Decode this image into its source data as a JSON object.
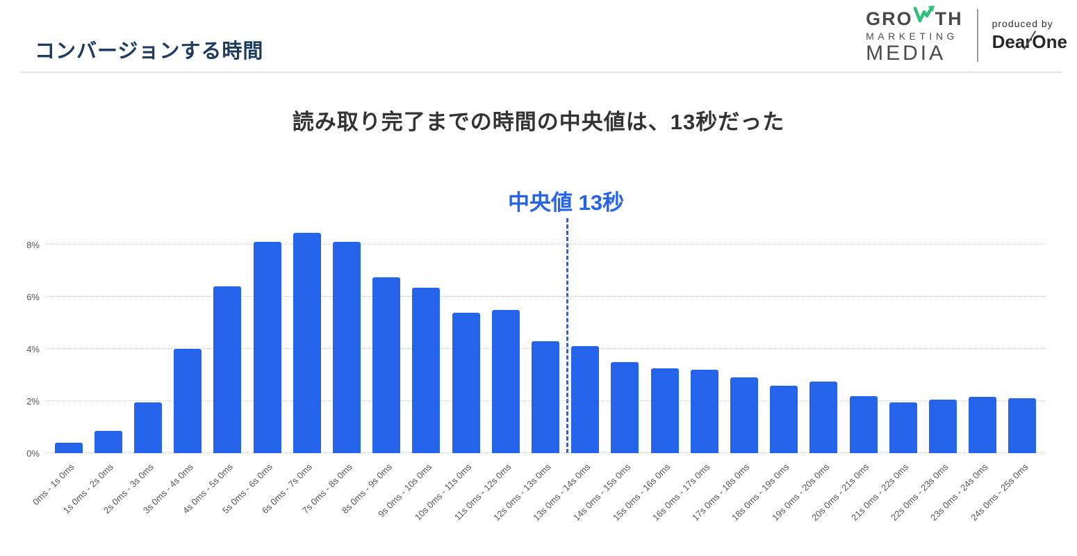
{
  "header": {
    "title": "コンバージョンする時間"
  },
  "logo": {
    "growth_pre": "GRO",
    "growth_post": "TH",
    "marketing": "MARKETING",
    "media": "MEDIA",
    "produced_by": "produced by",
    "brand": "DearOne"
  },
  "headline": "読み取り完了までの時間の中央値は、13秒だった",
  "colors": {
    "bar_blue": "#2563eb",
    "median_blue": "#2563eb",
    "title_navy": "#1d3b5f",
    "headline_dark": "#333333",
    "axis_gray": "#555555",
    "gridline_gray": "#c9d2dc",
    "logo_gray": "#4a4a4a",
    "logo_green": "#2fbf7b"
  },
  "chart_data": {
    "type": "bar",
    "title": "読み取り完了までの時間の中央値は、13秒だった",
    "xlabel": "",
    "ylabel": "",
    "y_ticks": [
      "0%",
      "2%",
      "4%",
      "6%",
      "8%"
    ],
    "ylim": [
      0,
      8.8
    ],
    "grid": "horizontal dotted",
    "legend": "none",
    "bar_color": "#2563eb",
    "categories": [
      "0ms - 1s 0ms",
      "1s 0ms - 2s 0ms",
      "2s 0ms - 3s 0ms",
      "3s 0ms - 4s 0ms",
      "4s 0ms - 5s 0ms",
      "5s 0ms - 6s 0ms",
      "6s 0ms - 7s 0ms",
      "7s 0ms - 8s 0ms",
      "8s 0ms - 9s 0ms",
      "9s 0ms - 10s 0ms",
      "10s 0ms - 11s 0ms",
      "11s 0ms - 12s 0ms",
      "12s 0ms - 13s 0ms",
      "13s 0ms - 14s 0ms",
      "14s 0ms - 15s 0ms",
      "15s 0ms - 16s 0ms",
      "16s 0ms - 17s 0ms",
      "17s 0ms - 18s 0ms",
      "18s 0ms - 19s 0ms",
      "19s 0ms - 20s 0ms",
      "20s 0ms - 21s 0ms",
      "21s 0ms - 22s 0ms",
      "22s 0ms - 23s 0ms",
      "23s 0ms - 24s 0ms",
      "24s 0ms - 25s 0ms"
    ],
    "values": [
      0.4,
      0.85,
      1.95,
      4.0,
      6.4,
      8.1,
      8.45,
      8.1,
      6.75,
      6.35,
      5.4,
      5.5,
      4.3,
      4.1,
      3.5,
      3.25,
      3.2,
      2.9,
      2.6,
      2.75,
      2.2,
      1.95,
      2.05,
      2.15,
      2.1
    ],
    "median_annotation": {
      "label": "中央値 13秒",
      "value_seconds": 13,
      "line_after_category_index": 12,
      "line_style": "dashed vertical"
    }
  }
}
